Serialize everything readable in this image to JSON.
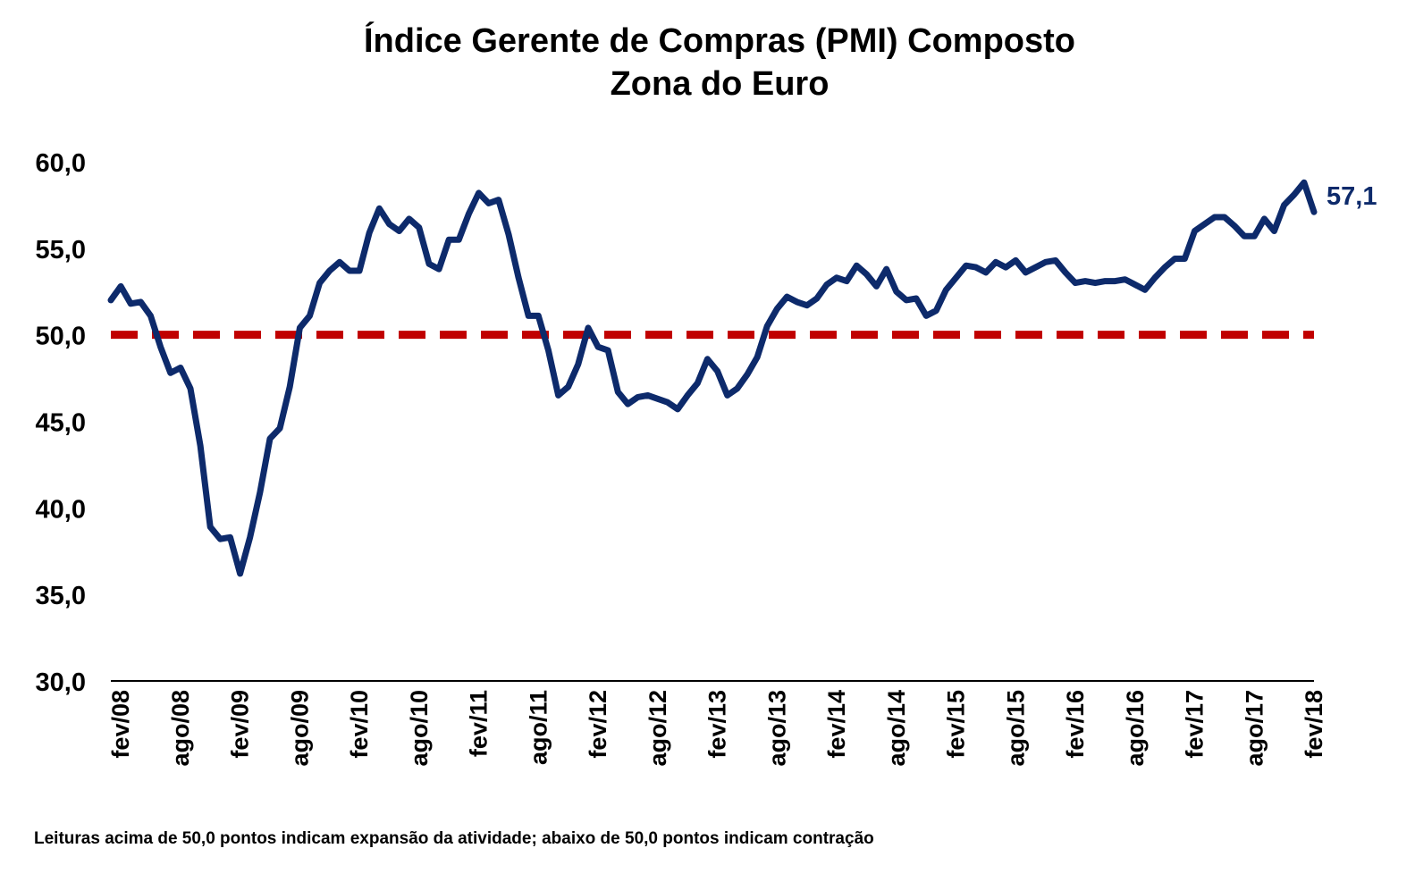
{
  "chart_data": {
    "type": "line",
    "title": "Índice Gerente de Compras (PMI) Composto",
    "subtitle": "Zona do Euro",
    "xlabel": "",
    "ylabel": "",
    "ylim": [
      30,
      60
    ],
    "y_ticks": [
      "30,0",
      "35,0",
      "40,0",
      "45,0",
      "50,0",
      "55,0",
      "60,0"
    ],
    "x_tick_labels": [
      "fev/08",
      "ago/08",
      "fev/09",
      "ago/09",
      "fev/10",
      "ago/10",
      "fev/11",
      "ago/11",
      "fev/12",
      "ago/12",
      "fev/13",
      "ago/13",
      "fev/14",
      "ago/14",
      "fev/15",
      "ago/15",
      "fev/16",
      "ago/16",
      "fev/17",
      "ago/17",
      "fev/18"
    ],
    "x_start": "2008-01",
    "x_end": "2018-02",
    "series": [
      {
        "color": "#0d2a6b",
        "x": [
          "2008-01",
          "2008-02",
          "2008-03",
          "2008-04",
          "2008-05",
          "2008-06",
          "2008-07",
          "2008-08",
          "2008-09",
          "2008-10",
          "2008-11",
          "2008-12",
          "2009-01",
          "2009-02",
          "2009-03",
          "2009-04",
          "2009-05",
          "2009-06",
          "2009-07",
          "2009-08",
          "2009-09",
          "2009-10",
          "2009-11",
          "2009-12",
          "2010-01",
          "2010-02",
          "2010-03",
          "2010-04",
          "2010-05",
          "2010-06",
          "2010-07",
          "2010-08",
          "2010-09",
          "2010-10",
          "2010-11",
          "2010-12",
          "2011-01",
          "2011-02",
          "2011-03",
          "2011-04",
          "2011-05",
          "2011-06",
          "2011-07",
          "2011-08",
          "2011-09",
          "2011-10",
          "2011-11",
          "2011-12",
          "2012-01",
          "2012-02",
          "2012-03",
          "2012-04",
          "2012-05",
          "2012-06",
          "2012-07",
          "2012-08",
          "2012-09",
          "2012-10",
          "2012-11",
          "2012-12",
          "2013-01",
          "2013-02",
          "2013-03",
          "2013-04",
          "2013-05",
          "2013-06",
          "2013-07",
          "2013-08",
          "2013-09",
          "2013-10",
          "2013-11",
          "2013-12",
          "2014-01",
          "2014-02",
          "2014-03",
          "2014-04",
          "2014-05",
          "2014-06",
          "2014-07",
          "2014-08",
          "2014-09",
          "2014-10",
          "2014-11",
          "2014-12",
          "2015-01",
          "2015-02",
          "2015-03",
          "2015-04",
          "2015-05",
          "2015-06",
          "2015-07",
          "2015-08",
          "2015-09",
          "2015-10",
          "2015-11",
          "2015-12",
          "2016-01",
          "2016-02",
          "2016-03",
          "2016-04",
          "2016-05",
          "2016-06",
          "2016-07",
          "2016-08",
          "2016-09",
          "2016-10",
          "2016-11",
          "2016-12",
          "2017-01",
          "2017-02",
          "2017-03",
          "2017-04",
          "2017-05",
          "2017-06",
          "2017-07",
          "2017-08",
          "2017-09",
          "2017-10",
          "2017-11",
          "2017-12",
          "2018-01",
          "2018-02"
        ],
        "values": [
          52.0,
          52.8,
          51.8,
          51.9,
          51.1,
          49.3,
          47.8,
          48.1,
          46.9,
          43.6,
          38.9,
          38.2,
          38.3,
          36.2,
          38.3,
          40.9,
          44.0,
          44.6,
          47.0,
          50.4,
          51.1,
          53.0,
          53.7,
          54.2,
          53.7,
          53.7,
          55.9,
          57.3,
          56.4,
          56.0,
          56.7,
          56.2,
          54.1,
          53.8,
          55.5,
          55.5,
          57.0,
          58.2,
          57.6,
          57.8,
          55.8,
          53.3,
          51.1,
          51.1,
          49.1,
          46.5,
          47.0,
          48.3,
          50.4,
          49.3,
          49.1,
          46.7,
          46.0,
          46.4,
          46.5,
          46.3,
          46.1,
          45.7,
          46.5,
          47.2,
          48.6,
          47.9,
          46.5,
          46.9,
          47.7,
          48.7,
          50.5,
          51.5,
          52.2,
          51.9,
          51.7,
          52.1,
          52.9,
          53.3,
          53.1,
          54.0,
          53.5,
          52.8,
          53.8,
          52.5,
          52.0,
          52.1,
          51.1,
          51.4,
          52.6,
          53.3,
          54.0,
          53.9,
          53.6,
          54.2,
          53.9,
          54.3,
          53.6,
          53.9,
          54.2,
          54.3,
          53.6,
          53.0,
          53.1,
          53.0,
          53.1,
          53.1,
          53.2,
          52.9,
          52.6,
          53.3,
          53.9,
          54.4,
          54.4,
          56.0,
          56.4,
          56.8,
          56.8,
          56.3,
          55.7,
          55.7,
          56.7,
          56.0,
          57.5,
          58.1,
          58.8,
          57.1
        ]
      },
      {
        "color": "#c00000",
        "x": [
          "2008-01",
          "2018-02"
        ],
        "values": [
          50.0,
          50.0
        ]
      }
    ],
    "last_value_label": "57,1",
    "grid": false
  },
  "footnote": "Leituras acima de 50,0 pontos indicam expansão da atividade; abaixo de 50,0 pontos indicam contração"
}
